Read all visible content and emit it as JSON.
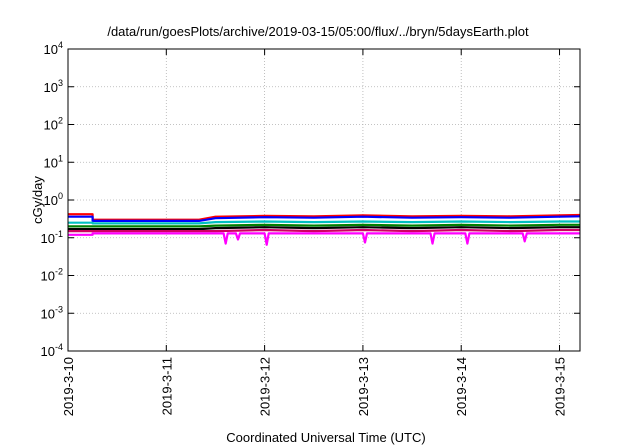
{
  "chart_data": {
    "type": "line",
    "title": "/data/run/goesPlots/archive/2019-03-15/05:00/flux/../bryn/5daysEarth.plot",
    "xlabel": "Coordinated Universal Time (UTC)",
    "ylabel": "cGy/day",
    "yscale": "log",
    "ylim": [
      0.0001,
      10000
    ],
    "xlim": [
      "2019-03-10T00:00",
      "2019-03-15T05:00"
    ],
    "grid": true,
    "x_ticks": [
      "2019-3-10",
      "2019-3-11",
      "2019-3-12",
      "2019-3-13",
      "2019-3-14",
      "2019-3-15"
    ],
    "y_ticks": [
      {
        "value": 0.0001,
        "base": "10",
        "exp": "-4"
      },
      {
        "value": 0.001,
        "base": "10",
        "exp": "-3"
      },
      {
        "value": 0.01,
        "base": "10",
        "exp": "-2"
      },
      {
        "value": 0.1,
        "base": "10",
        "exp": "-1"
      },
      {
        "value": 1,
        "base": "10",
        "exp": "0"
      },
      {
        "value": 10,
        "base": "10",
        "exp": "1"
      },
      {
        "value": 100,
        "base": "10",
        "exp": "2"
      },
      {
        "value": 1000,
        "base": "10",
        "exp": "3"
      },
      {
        "value": 10000,
        "base": "10",
        "exp": "4"
      }
    ],
    "series": [
      {
        "color": "#ff0000",
        "x": [
          "2019-03-10T00:00",
          "2019-03-10T06:00",
          "2019-03-10T06:00",
          "2019-03-11T08:00",
          "2019-03-11T12:00",
          "2019-03-12T00:00",
          "2019-03-12T12:00",
          "2019-03-13T00:00",
          "2019-03-13T12:00",
          "2019-03-14T00:00",
          "2019-03-14T12:00",
          "2019-03-15T00:00",
          "2019-03-15T05:00"
        ],
        "y": [
          0.42,
          0.42,
          0.3,
          0.3,
          0.36,
          0.38,
          0.37,
          0.39,
          0.37,
          0.38,
          0.37,
          0.39,
          0.4
        ]
      },
      {
        "color": "#0000ff",
        "x": [
          "2019-03-10T00:00",
          "2019-03-10T06:00",
          "2019-03-10T06:00",
          "2019-03-11T08:00",
          "2019-03-11T12:00",
          "2019-03-12T00:00",
          "2019-03-12T12:00",
          "2019-03-13T00:00",
          "2019-03-13T12:00",
          "2019-03-14T00:00",
          "2019-03-14T12:00",
          "2019-03-15T00:00",
          "2019-03-15T05:00"
        ],
        "y": [
          0.36,
          0.36,
          0.28,
          0.28,
          0.33,
          0.35,
          0.34,
          0.36,
          0.34,
          0.35,
          0.34,
          0.36,
          0.37
        ]
      },
      {
        "color": "#00c0c0",
        "x": [
          "2019-03-10T00:00",
          "2019-03-10T06:00",
          "2019-03-10T06:00",
          "2019-03-11T08:00",
          "2019-03-11T12:00",
          "2019-03-12T00:00",
          "2019-03-12T12:00",
          "2019-03-13T00:00",
          "2019-03-13T12:00",
          "2019-03-14T00:00",
          "2019-03-14T12:00",
          "2019-03-15T00:00",
          "2019-03-15T05:00"
        ],
        "y": [
          0.25,
          0.25,
          0.24,
          0.24,
          0.26,
          0.27,
          0.26,
          0.27,
          0.26,
          0.27,
          0.26,
          0.27,
          0.27
        ]
      },
      {
        "color": "#008000",
        "x": [
          "2019-03-10T00:00",
          "2019-03-10T06:00",
          "2019-03-10T06:00",
          "2019-03-11T08:00",
          "2019-03-11T12:00",
          "2019-03-12T00:00",
          "2019-03-12T12:00",
          "2019-03-13T00:00",
          "2019-03-13T12:00",
          "2019-03-14T00:00",
          "2019-03-14T12:00",
          "2019-03-15T00:00",
          "2019-03-15T05:00"
        ],
        "y": [
          0.2,
          0.2,
          0.2,
          0.2,
          0.21,
          0.22,
          0.21,
          0.22,
          0.21,
          0.22,
          0.21,
          0.22,
          0.22
        ]
      },
      {
        "color": "#000000",
        "x": [
          "2019-03-10T00:00",
          "2019-03-10T06:00",
          "2019-03-10T06:00",
          "2019-03-11T08:00",
          "2019-03-11T12:00",
          "2019-03-12T00:00",
          "2019-03-12T12:00",
          "2019-03-13T00:00",
          "2019-03-13T12:00",
          "2019-03-14T00:00",
          "2019-03-14T12:00",
          "2019-03-15T00:00",
          "2019-03-15T05:00"
        ],
        "y": [
          0.17,
          0.17,
          0.17,
          0.17,
          0.18,
          0.19,
          0.18,
          0.19,
          0.18,
          0.19,
          0.18,
          0.19,
          0.19
        ]
      },
      {
        "color": "#d00060",
        "x": [
          "2019-03-10T00:00",
          "2019-03-10T06:00",
          "2019-03-10T06:00",
          "2019-03-11T08:00",
          "2019-03-11T12:00",
          "2019-03-12T00:00",
          "2019-03-12T12:00",
          "2019-03-13T00:00",
          "2019-03-13T12:00",
          "2019-03-14T00:00",
          "2019-03-14T12:00",
          "2019-03-15T00:00",
          "2019-03-15T05:00"
        ],
        "y": [
          0.15,
          0.15,
          0.15,
          0.15,
          0.15,
          0.16,
          0.15,
          0.16,
          0.15,
          0.16,
          0.15,
          0.16,
          0.16
        ]
      },
      {
        "color": "#ff00ff",
        "x": [
          "2019-03-10T00:00",
          "2019-03-10T06:00",
          "2019-03-10T06:00",
          "2019-03-11T08:00",
          "2019-03-11T12:00",
          "2019-03-11T14:00",
          "2019-03-11T14:30",
          "2019-03-11T15:00",
          "2019-03-11T17:00",
          "2019-03-11T17:30",
          "2019-03-11T18:00",
          "2019-03-12T00:00",
          "2019-03-12T00:30",
          "2019-03-12T01:00",
          "2019-03-13T00:00",
          "2019-03-13T00:30",
          "2019-03-13T01:00",
          "2019-03-13T16:30",
          "2019-03-13T17:00",
          "2019-03-13T17:30",
          "2019-03-14T01:00",
          "2019-03-14T01:30",
          "2019-03-14T02:00",
          "2019-03-14T15:00",
          "2019-03-14T15:30",
          "2019-03-14T16:00",
          "2019-03-15T00:00",
          "2019-03-15T05:00"
        ],
        "y": [
          0.12,
          0.12,
          0.13,
          0.13,
          0.13,
          0.13,
          0.07,
          0.13,
          0.13,
          0.09,
          0.13,
          0.13,
          0.065,
          0.13,
          0.13,
          0.075,
          0.13,
          0.13,
          0.07,
          0.13,
          0.13,
          0.07,
          0.13,
          0.13,
          0.08,
          0.13,
          0.13,
          0.13
        ]
      }
    ]
  }
}
